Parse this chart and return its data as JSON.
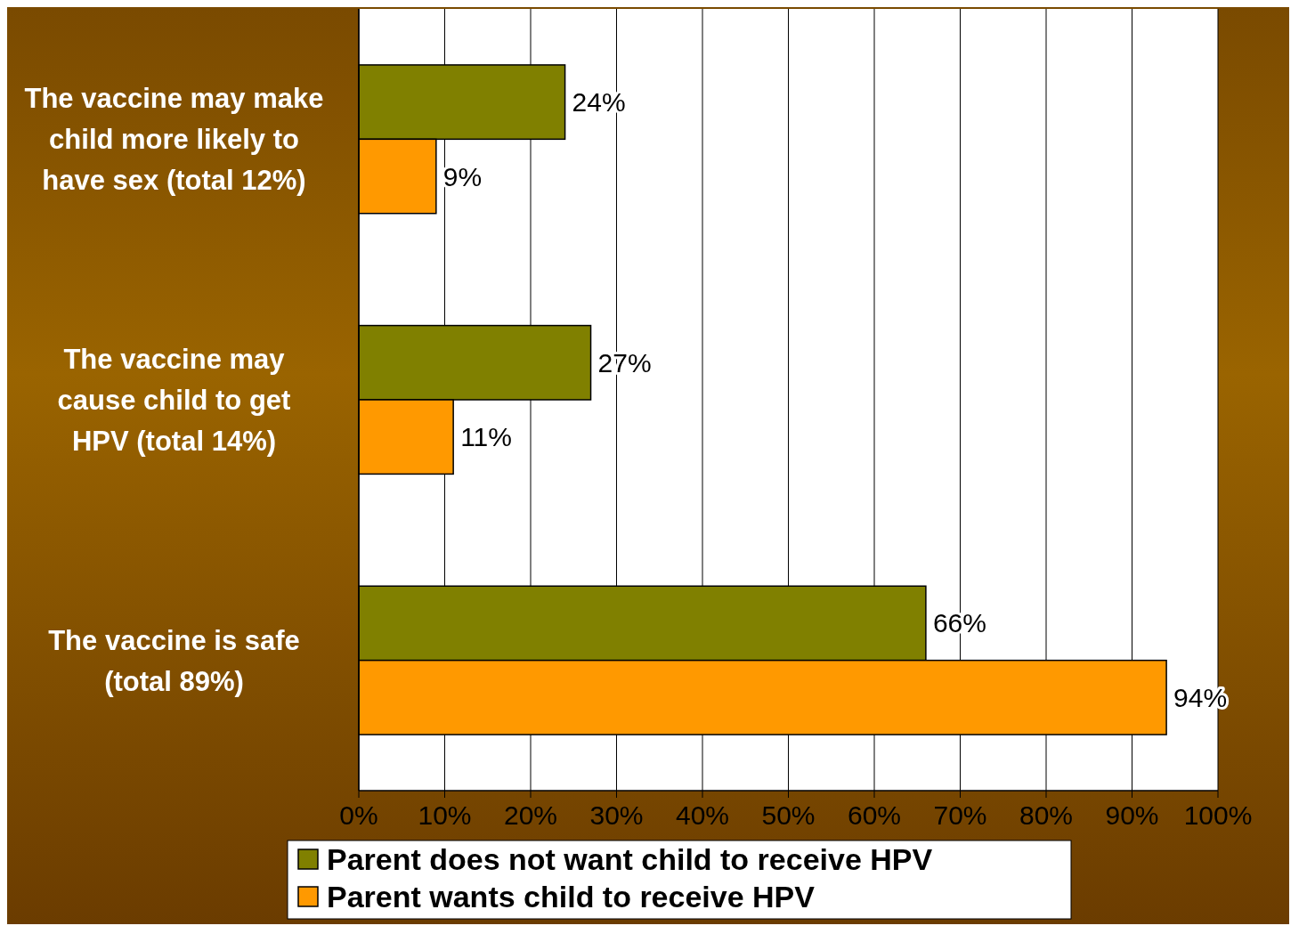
{
  "chart_data": {
    "type": "bar",
    "orientation": "horizontal",
    "categories": [
      "The vaccine may make child more likely to have sex (total 12%)",
      "The vaccine may cause child to get HPV (total 14%)",
      "The vaccine is safe (total 89%)"
    ],
    "series": [
      {
        "name": "Parent does not want child to receive HPV",
        "color": "#808000",
        "values": [
          24,
          27,
          66
        ],
        "value_labels": [
          "24%",
          "27%",
          "66%"
        ]
      },
      {
        "name": "Parent wants child to receive HPV",
        "color": "#ff9900",
        "values": [
          9,
          11,
          94
        ],
        "value_labels": [
          "9%",
          "11%",
          "94%"
        ]
      }
    ],
    "xlim": [
      0,
      100
    ],
    "xticks": [
      {
        "value": 0,
        "label": "0%"
      },
      {
        "value": 10,
        "label": "10%"
      },
      {
        "value": 20,
        "label": "20%"
      },
      {
        "value": 30,
        "label": "30%"
      },
      {
        "value": 40,
        "label": "40%"
      },
      {
        "value": 50,
        "label": "50%"
      },
      {
        "value": 60,
        "label": "60%"
      },
      {
        "value": 70,
        "label": "70%"
      },
      {
        "value": 80,
        "label": "80%"
      },
      {
        "value": 90,
        "label": "90%"
      },
      {
        "value": 100,
        "label": "100%"
      }
    ],
    "grid": "x",
    "legend": "bottom"
  }
}
